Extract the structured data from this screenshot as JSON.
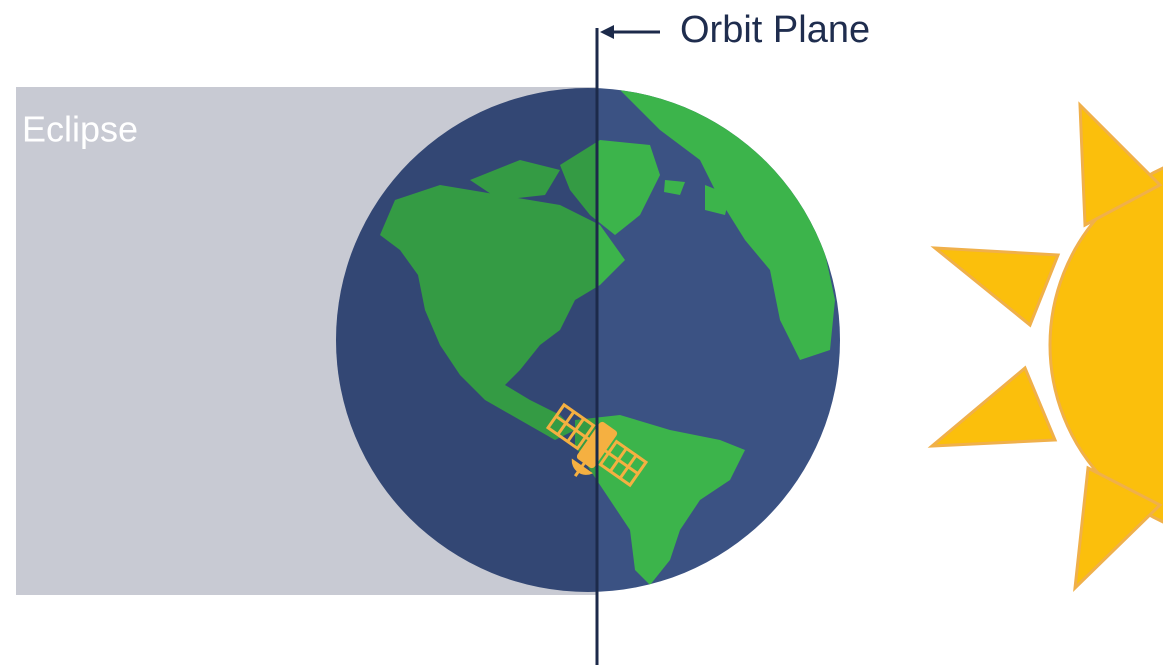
{
  "labels": {
    "orbit_plane": "Orbit Plane",
    "eclipse": "Eclipse"
  }
}
